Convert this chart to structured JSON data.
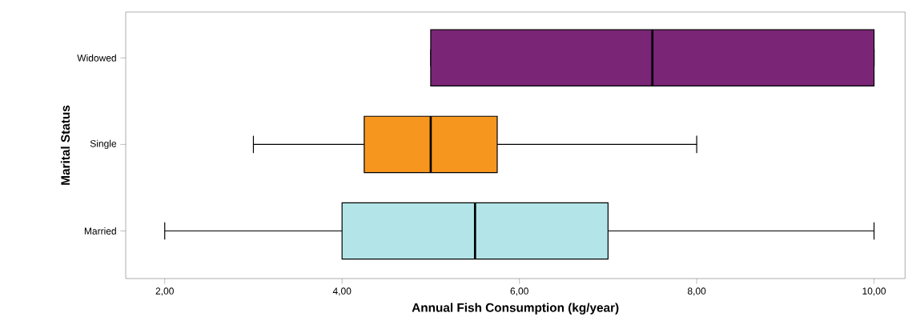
{
  "chart_data": {
    "type": "box",
    "orientation": "horizontal",
    "xlabel": "Annual Fish Consumption (kg/year)",
    "ylabel": "Marital Status",
    "categories": [
      "Widowed",
      "Single",
      "Married"
    ],
    "colors": [
      "#7b2577",
      "#f7961e",
      "#b3e5e8"
    ],
    "boxes": [
      {
        "low": 5,
        "q1": 5,
        "median": 7.5,
        "q3": 10,
        "high": 10
      },
      {
        "low": 3,
        "q1": 4.25,
        "median": 5,
        "q3": 5.75,
        "high": 8
      },
      {
        "low": 2,
        "q1": 4,
        "median": 5.5,
        "q3": 7,
        "high": 10
      }
    ],
    "xlim": [
      1.56,
      10.35
    ],
    "xticks": [
      {
        "value": 2,
        "label": "2,00"
      },
      {
        "value": 4,
        "label": "4,00"
      },
      {
        "value": 6,
        "label": "6,00"
      },
      {
        "value": 8,
        "label": "8,00"
      },
      {
        "value": 10,
        "label": "10,00"
      }
    ]
  }
}
